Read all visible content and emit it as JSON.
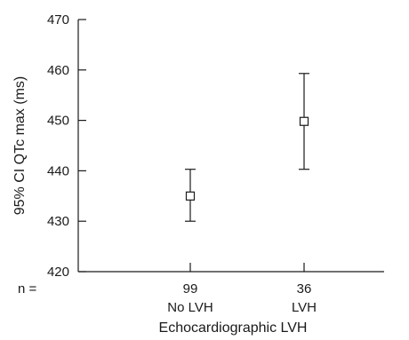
{
  "chart_data": {
    "type": "errorbar",
    "ylabel": "95% CI QTc max (ms)",
    "xlabel": "Echocardiographic LVH",
    "ylim": [
      420,
      470
    ],
    "yticks": [
      "420",
      "430",
      "440",
      "450",
      "460",
      "470"
    ],
    "n_label": "n =",
    "categories": [
      {
        "n": "99",
        "name": "No LVH",
        "mean": 435,
        "ci_low": 430,
        "ci_high": 440.3
      },
      {
        "n": "36",
        "name": "LVH",
        "mean": 449.8,
        "ci_low": 440.3,
        "ci_high": 459.3
      }
    ]
  }
}
